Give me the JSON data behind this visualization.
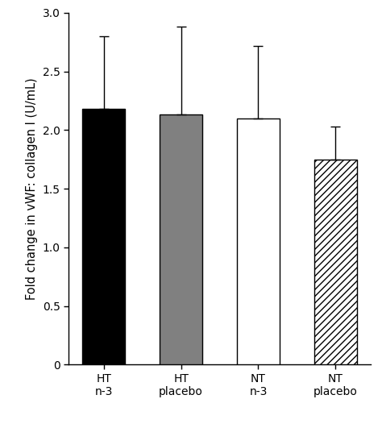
{
  "categories": [
    "HT\nn-3",
    "HT\nplacebo",
    "NT\nn-3",
    "NT\nplacebo"
  ],
  "values": [
    2.18,
    2.13,
    2.1,
    1.75
  ],
  "errors_upper": [
    0.62,
    0.75,
    0.62,
    0.28
  ],
  "bar_colors": [
    "black",
    "#808080",
    "white",
    "white"
  ],
  "hatch_patterns": [
    "",
    "",
    "",
    "////"
  ],
  "edgecolors": [
    "black",
    "black",
    "black",
    "black"
  ],
  "ylabel": "Fold change in vWF: collagen I (U/mL)",
  "ylim": [
    0,
    3.0
  ],
  "yticks": [
    0,
    0.5,
    1.0,
    1.5,
    2.0,
    2.5,
    3.0
  ],
  "bar_width": 0.55,
  "capsize": 4,
  "background_color": "#ffffff",
  "label_fontsize": 10.5,
  "tick_fontsize": 10
}
